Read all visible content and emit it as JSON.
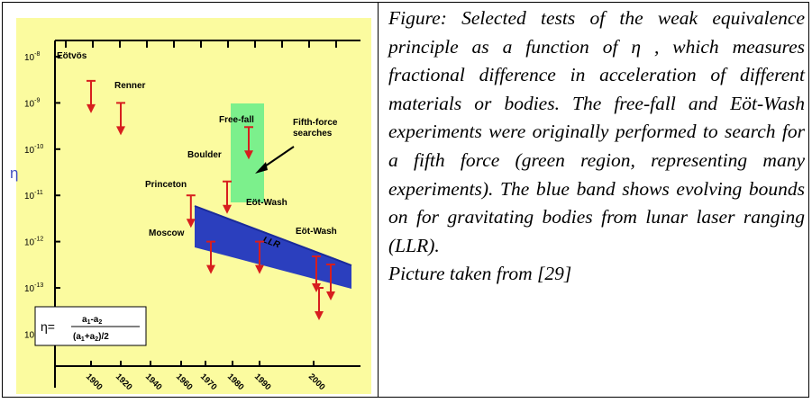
{
  "caption": {
    "body": "Figure: Selected tests of the weak equivalence principle as a function of η , which measures fractional difference in acceleration of different materials or bodies. The free-fall and Eöt-Wash experiments were originally performed to search for a fifth force (green region, representing many experiments). The blue band shows evolving bounds on for gravitating bodies from lunar laser ranging (LLR).",
    "credit": "Picture taken from [29]"
  },
  "colors": {
    "background": "#FBFB9F",
    "arrow": "#D71E1E",
    "fifth_force_region": "#7CF08C",
    "llr_band": "#2B3FBE",
    "llr_band_top": "#1A2A9A"
  },
  "chart_data": {
    "type": "scatter",
    "ylabel": "η",
    "y_scale": "log",
    "ylim": [
      1e-14,
      1e-08
    ],
    "y_ticks": [
      {
        "label": "10",
        "exp": "-8"
      },
      {
        "label": "10",
        "exp": "-9"
      },
      {
        "label": "10",
        "exp": "-10"
      },
      {
        "label": "10",
        "exp": "-11"
      },
      {
        "label": "10",
        "exp": "-12"
      },
      {
        "label": "10",
        "exp": "-13"
      },
      {
        "label": "10",
        "exp": "-14"
      }
    ],
    "x_ticks": [
      "1900",
      "1920",
      "1940",
      "1960",
      "1970",
      "1980",
      "1990",
      "2000"
    ],
    "points": [
      {
        "label": "Eötvös",
        "year": 1900,
        "eta": 3e-09
      },
      {
        "label": "Renner",
        "year": 1920,
        "eta": 1e-09
      },
      {
        "label": "Free-fall",
        "year": 1986,
        "eta": 3e-10
      },
      {
        "label": "Boulder",
        "year": 1978,
        "eta": 2e-11
      },
      {
        "label": "Princeton",
        "year": 1964,
        "eta": 1e-11
      },
      {
        "label": "Eöt-Wash",
        "year": 1990,
        "eta": 1e-12
      },
      {
        "label": "Moscow",
        "year": 1972,
        "eta": 1e-12
      },
      {
        "label": "Eöt-Wash",
        "year": 2002,
        "eta": 1e-13
      }
    ],
    "regions": [
      {
        "name": "Fifth-force searches",
        "label_lines": [
          "Fifth-force",
          "searches"
        ]
      },
      {
        "name": "LLR"
      }
    ],
    "formula": {
      "lhs": "η=",
      "numerator": "a1-a2",
      "denominator": "(a1+a2)/2"
    }
  }
}
